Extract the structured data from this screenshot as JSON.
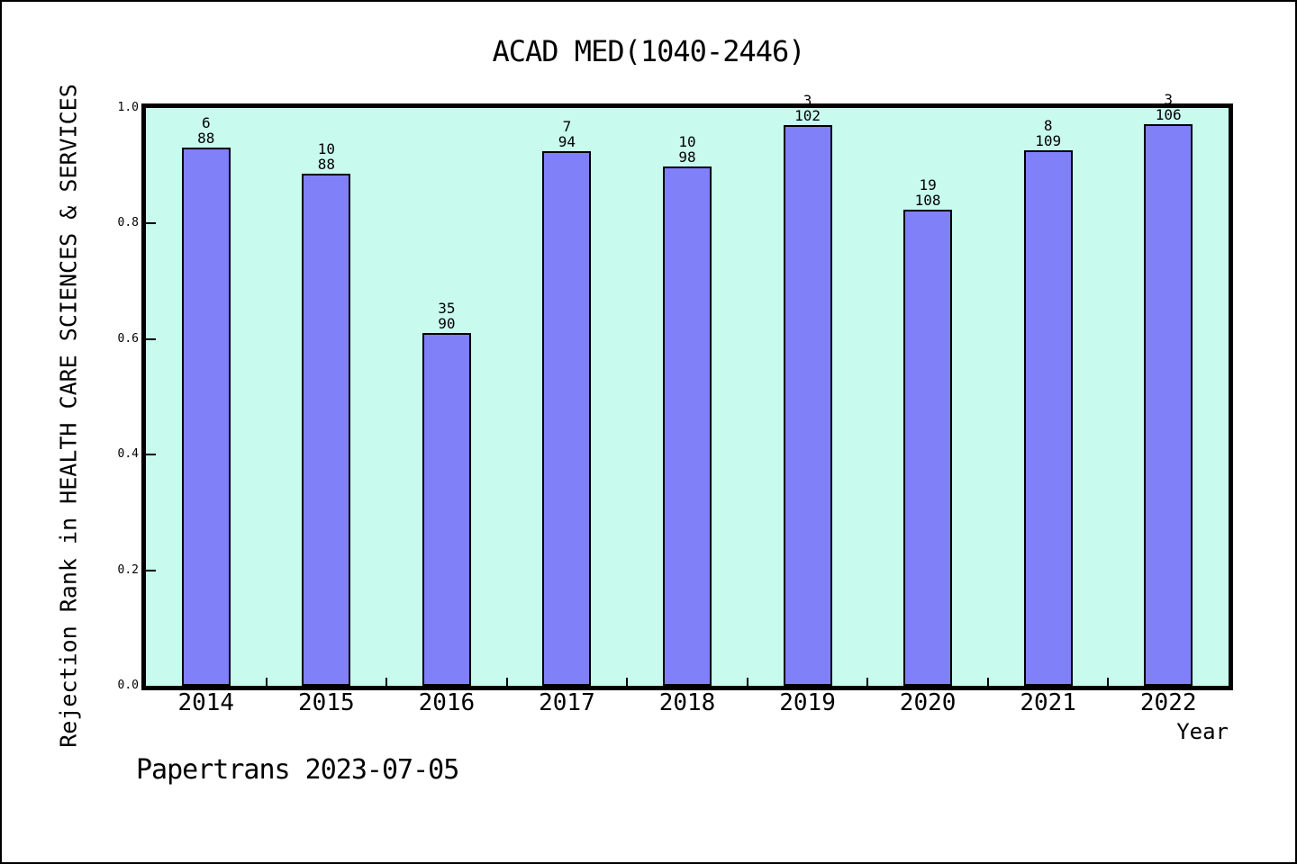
{
  "chart_data": {
    "type": "bar",
    "title": "ACAD MED(1040-2446)",
    "xlabel": "Year",
    "ylabel": "Rejection Rank in HEALTH CARE SCIENCES & SERVICES",
    "annotation": "Papertrans 2023-07-05",
    "ylim": [
      0.0,
      1.0
    ],
    "grid": false,
    "legend": false,
    "yticks": [
      {
        "value": 1.0,
        "label": "1.0"
      },
      {
        "value": 0.8,
        "label": "0.8"
      },
      {
        "value": 0.6,
        "label": "0.6"
      },
      {
        "value": 0.4,
        "label": "0.4"
      },
      {
        "value": 0.2,
        "label": "0.2"
      },
      {
        "value": 0.0,
        "label": "0.0"
      }
    ],
    "categories": [
      "2014",
      "2015",
      "2016",
      "2017",
      "2018",
      "2019",
      "2020",
      "2021",
      "2022"
    ],
    "bars": [
      {
        "year": "2014",
        "label_top": "6",
        "label_bottom": "88",
        "value": 0.9318
      },
      {
        "year": "2015",
        "label_top": "10",
        "label_bottom": "88",
        "value": 0.8864
      },
      {
        "year": "2016",
        "label_top": "35",
        "label_bottom": "90",
        "value": 0.6111
      },
      {
        "year": "2017",
        "label_top": "7",
        "label_bottom": "94",
        "value": 0.9255
      },
      {
        "year": "2018",
        "label_top": "10",
        "label_bottom": "98",
        "value": 0.898
      },
      {
        "year": "2019",
        "label_top": "3",
        "label_bottom": "102",
        "value": 0.9706
      },
      {
        "year": "2020",
        "label_top": "19",
        "label_bottom": "108",
        "value": 0.8241
      },
      {
        "year": "2021",
        "label_top": "8",
        "label_bottom": "109",
        "value": 0.9266
      },
      {
        "year": "2022",
        "label_top": "3",
        "label_bottom": "106",
        "value": 0.9717
      }
    ],
    "colors": {
      "bar_fill": "#8080f8",
      "bar_border": "#000000",
      "plot_bg": "#c8faee",
      "frame": "#000000",
      "text": "#000000",
      "page_bg": "#ffffff"
    }
  }
}
